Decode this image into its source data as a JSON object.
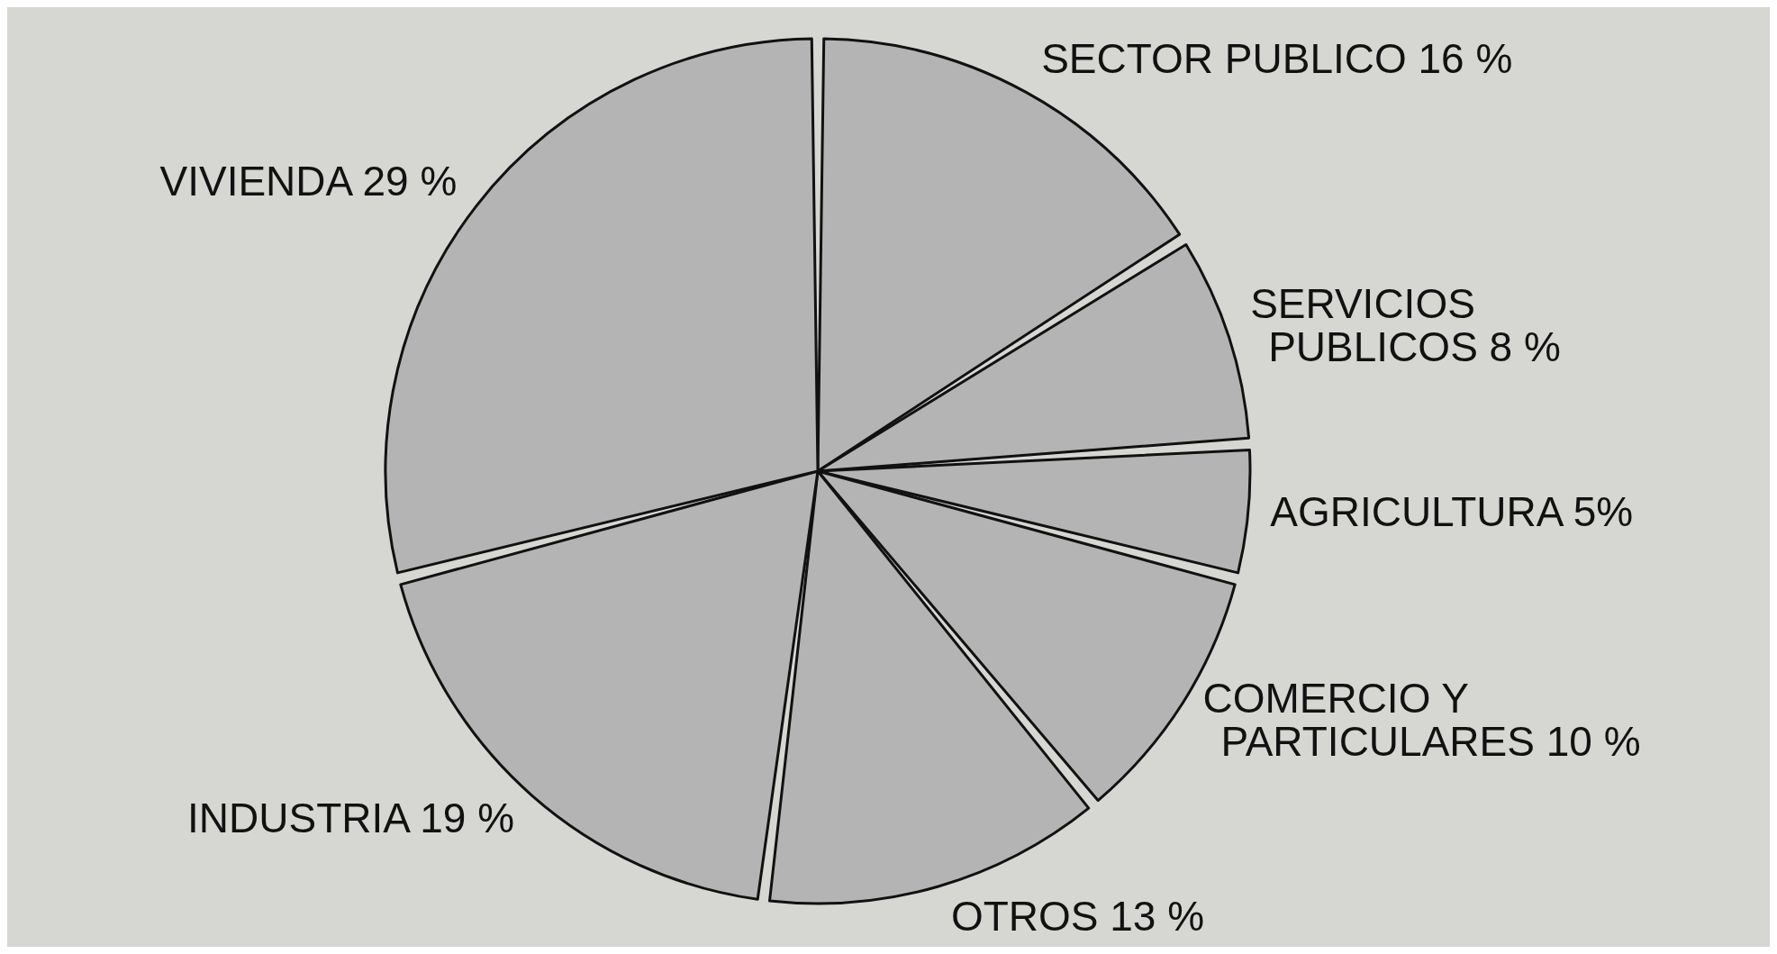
{
  "chart_data": {
    "type": "pie",
    "categories": [
      "SECTOR PUBLICO",
      "SERVICIOS PUBLICOS",
      "AGRICULTURA",
      "COMERCIO Y PARTICULARES",
      "OTROS",
      "INDUSTRIA",
      "VIVIENDA"
    ],
    "values": [
      16,
      8,
      5,
      10,
      13,
      19,
      29
    ],
    "value_labels": [
      "16 %",
      "8 %",
      "5%",
      "10 %",
      "13 %",
      "19 %",
      "29 %"
    ],
    "colors": [
      "#b4b4b4",
      "#b4b4b4",
      "#b4b4b4",
      "#b4b4b4",
      "#b4b4b4",
      "#b4b4b4",
      "#b4b4b4"
    ]
  }
}
